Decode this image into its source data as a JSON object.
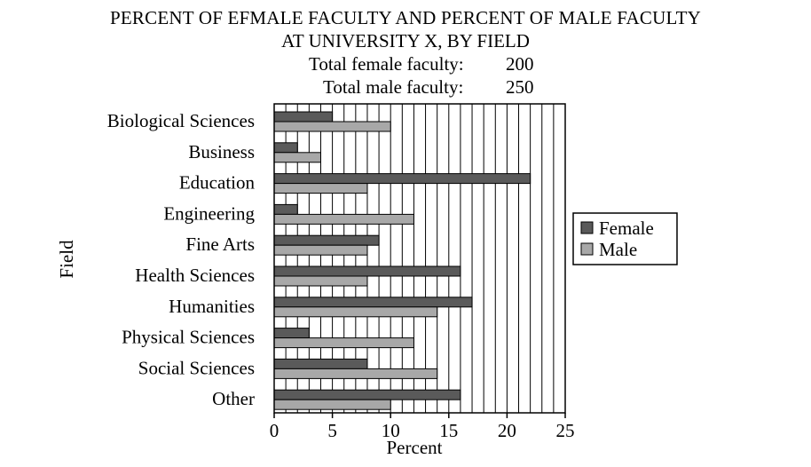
{
  "chart_data": {
    "type": "bar",
    "orientation": "horizontal",
    "title_line1": "PERCENT OF EFMALE FACULTY AND PERCENT OF MALE FACULTY",
    "title_line2": "AT UNIVERSITY X, BY FIELD",
    "totals": [
      {
        "label": "Total female faculty:",
        "value": "200"
      },
      {
        "label": "Total male faculty:",
        "value": "250"
      }
    ],
    "categories": [
      "Biological Sciences",
      "Business",
      "Education",
      "Engineering",
      "Fine Arts",
      "Health Sciences",
      "Humanities",
      "Physical Sciences",
      "Social Sciences",
      "Other"
    ],
    "series": [
      {
        "name": "Female",
        "color": "#5a5a5a",
        "values": [
          5,
          2,
          22,
          2,
          9,
          16,
          17,
          3,
          8,
          16
        ]
      },
      {
        "name": "Male",
        "color": "#a8a8a8",
        "values": [
          10,
          4,
          8,
          12,
          8,
          8,
          14,
          12,
          14,
          10
        ]
      }
    ],
    "xlabel": "Percent",
    "ylabel": "Field",
    "xlim": [
      0,
      25
    ],
    "xticks": [
      0,
      5,
      10,
      15,
      20,
      25
    ],
    "grid": "vertical lines every 1 percent",
    "legend": "right"
  }
}
